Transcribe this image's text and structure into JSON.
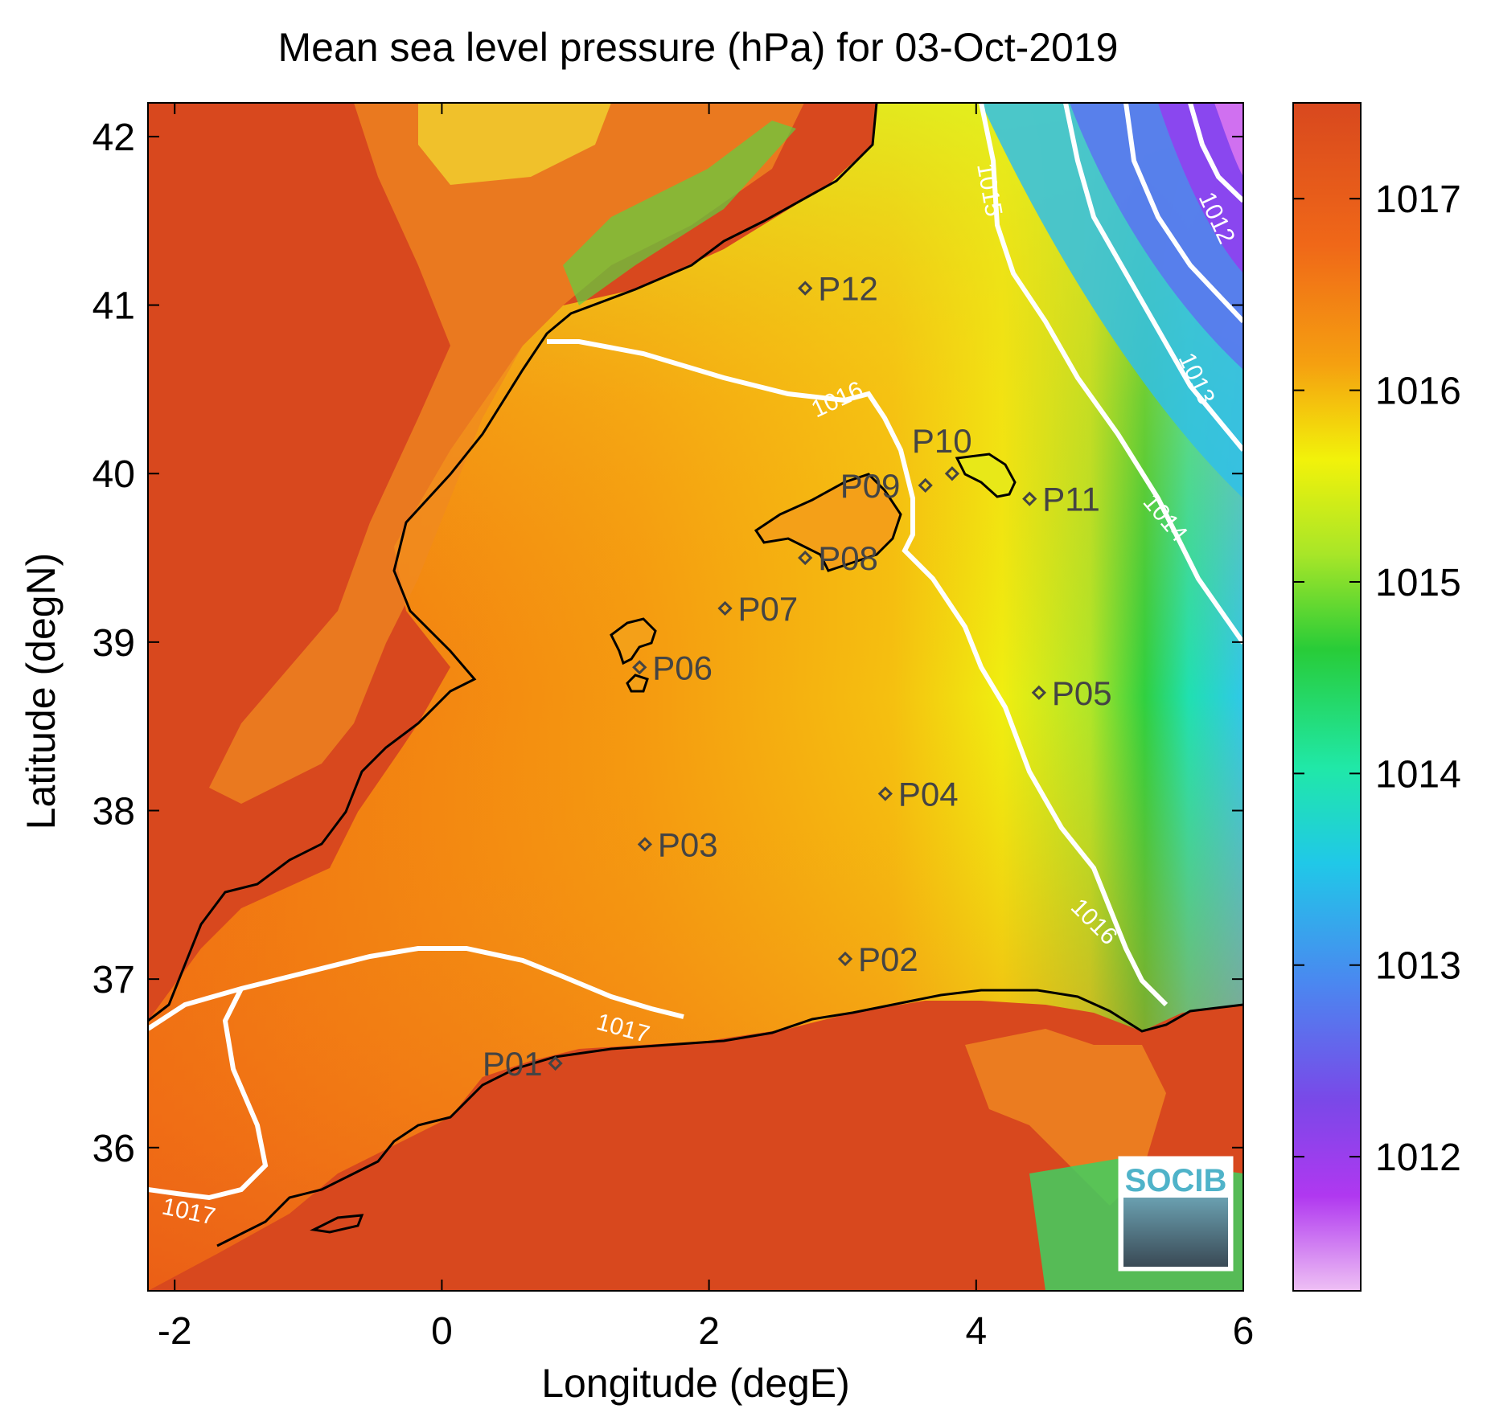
{
  "title": "Mean sea level pressure (hPa) for 03-Oct-2019",
  "xlabel": "Longitude (degE)",
  "ylabel": "Latitude (degN)",
  "x_ticks": [
    "-2",
    "0",
    "2",
    "4",
    "6"
  ],
  "y_ticks": [
    "42",
    "41",
    "40",
    "39",
    "38",
    "37",
    "36"
  ],
  "colorbar": {
    "ticks": [
      "1017",
      "1016",
      "1015",
      "1014",
      "1013",
      "1012"
    ],
    "colors": [
      "#d8481e",
      "#f57c10",
      "#f5b800",
      "#f2f20a",
      "#a8e628",
      "#28cc38",
      "#20e8a8",
      "#20c8e8",
      "#4a88f0",
      "#7a48e8",
      "#b038f0",
      "#e8a8f0"
    ]
  },
  "contour_labels": [
    {
      "text": "1017"
    },
    {
      "text": "1017"
    },
    {
      "text": "1016"
    },
    {
      "text": "1016"
    },
    {
      "text": "1015"
    },
    {
      "text": "1014"
    },
    {
      "text": "1013"
    },
    {
      "text": "1012"
    }
  ],
  "points": [
    {
      "label": "P01",
      "lon": 0.85,
      "lat": 36.5
    },
    {
      "label": "P02",
      "lon": 3.02,
      "lat": 37.12
    },
    {
      "label": "P03",
      "lon": 1.52,
      "lat": 37.8
    },
    {
      "label": "P04",
      "lon": 3.32,
      "lat": 38.1
    },
    {
      "label": "P05",
      "lon": 4.47,
      "lat": 38.7
    },
    {
      "label": "P06",
      "lon": 1.48,
      "lat": 38.85
    },
    {
      "label": "P07",
      "lon": 2.12,
      "lat": 39.2
    },
    {
      "label": "P08",
      "lon": 2.72,
      "lat": 39.5
    },
    {
      "label": "P09",
      "lon": 3.62,
      "lat": 39.93
    },
    {
      "label": "P10",
      "lon": 3.82,
      "lat": 40.0
    },
    {
      "label": "P11",
      "lon": 4.4,
      "lat": 39.85
    },
    {
      "label": "P12",
      "lon": 2.72,
      "lat": 41.1
    }
  ],
  "logo": "SOCIB"
}
